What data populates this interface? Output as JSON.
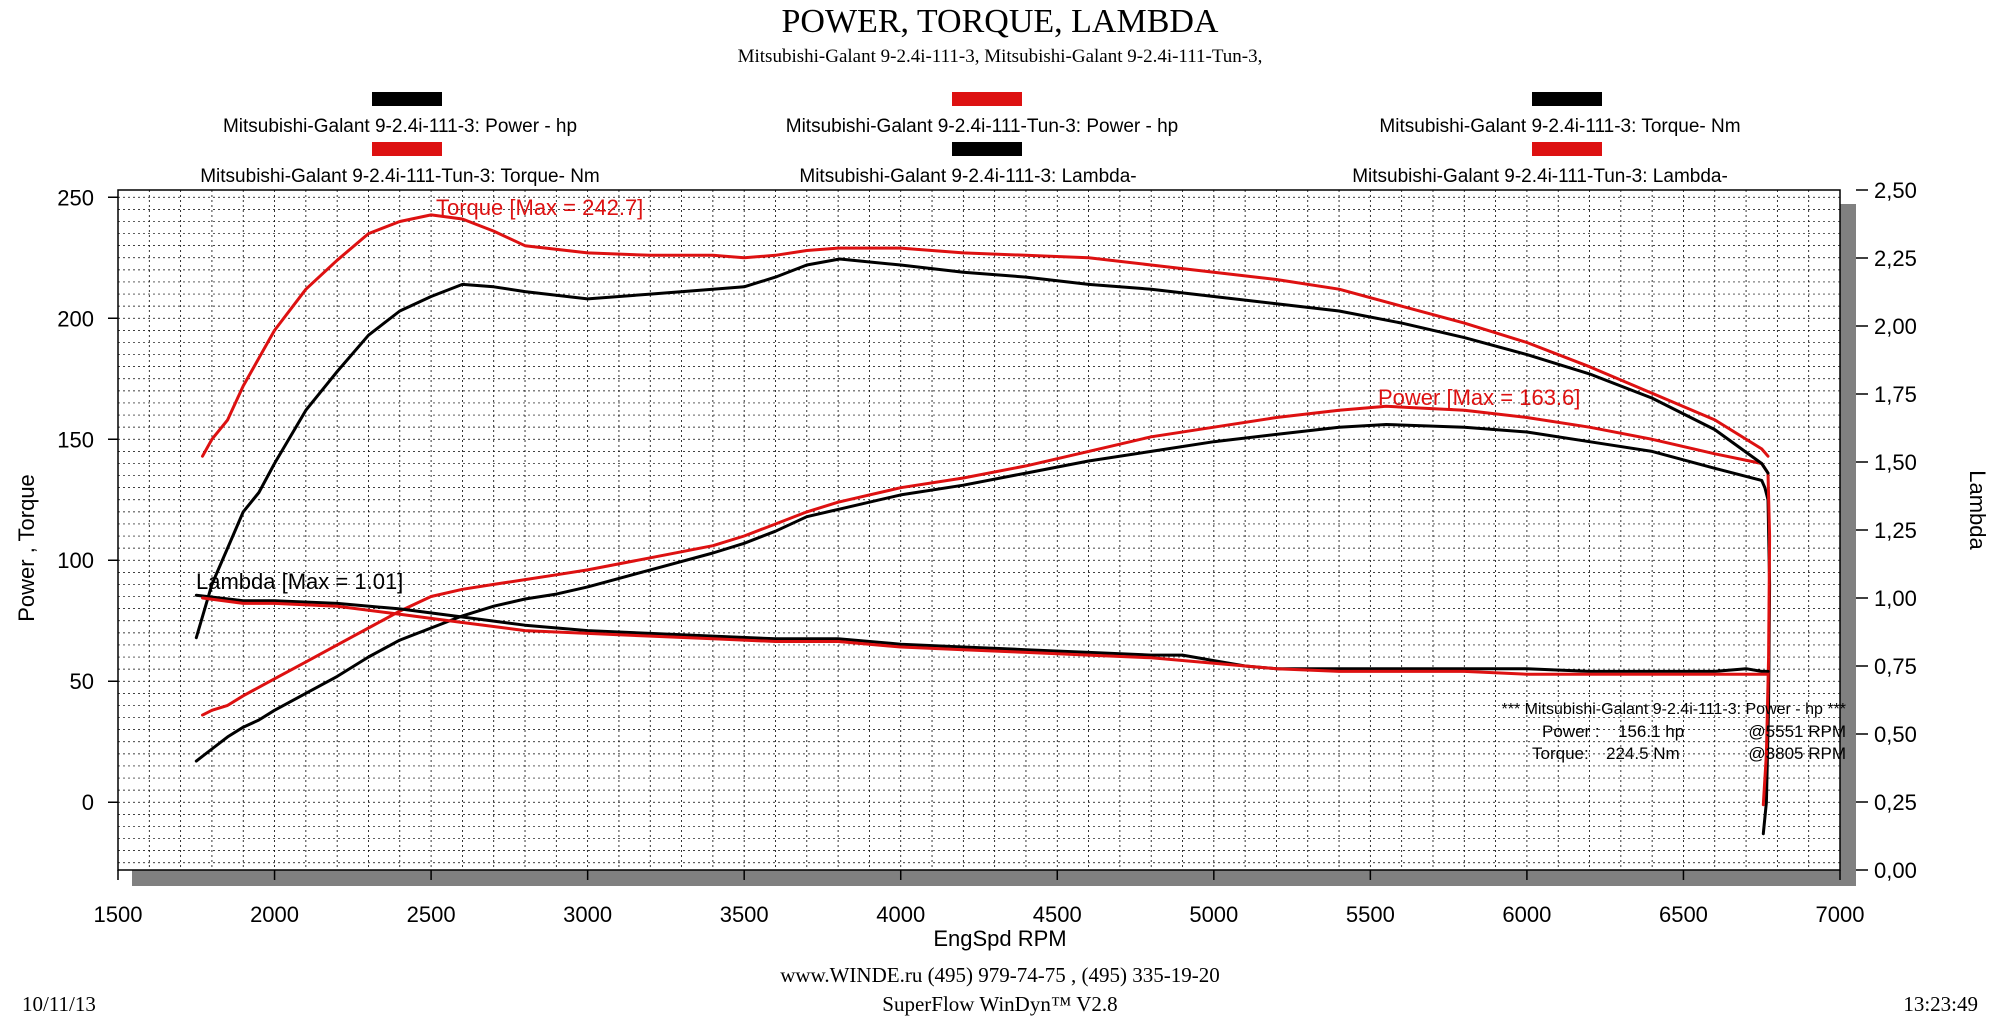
{
  "header": {
    "title": "POWER, TORQUE, LAMBDA",
    "subtitle": "Mitsubishi-Galant 9-2.4i-111-3, Mitsubishi-Galant 9-2.4i-111-Tun-3,"
  },
  "footer": {
    "contact": "www.WINDE.ru  (495) 979-74-75 , (495) 335-19-20",
    "software": "SuperFlow WinDyn™ V2.8",
    "date": "10/11/13",
    "time": "13:23:49"
  },
  "colors": {
    "stock": "#000000",
    "tuned": "#dd1111",
    "shadow": "#808080",
    "grid": "#000000"
  },
  "chart_data": {
    "type": "line",
    "title": "POWER, TORQUE, LAMBDA",
    "xlabel": "EngSpd  RPM",
    "ylabel": "Power , Torque",
    "y2label": "Lambda",
    "xlim": [
      1500,
      7000
    ],
    "ylim": [
      -28,
      253
    ],
    "y2lim": [
      0,
      2.5
    ],
    "x_ticks": [
      "1500",
      "2000",
      "2500",
      "3000",
      "3500",
      "4000",
      "4500",
      "5000",
      "5500",
      "6000",
      "6500",
      "7000"
    ],
    "y_ticks": [
      "0",
      "50",
      "100",
      "150",
      "200",
      "250"
    ],
    "y2_ticks": [
      "0,00",
      "0,25",
      "0,50",
      "0,75",
      "1,00",
      "1,25",
      "1,50",
      "1,75",
      "2,00",
      "2,25",
      "2,50"
    ],
    "legend": [
      {
        "label": "Mitsubishi-Galant 9-2.4i-111-3: Power -  hp",
        "color": "#000000"
      },
      {
        "label": "Mitsubishi-Galant 9-2.4i-111-Tun-3: Power -  hp",
        "color": "#dd1111"
      },
      {
        "label": "Mitsubishi-Galant 9-2.4i-111-3: Torque-  Nm",
        "color": "#000000"
      },
      {
        "label": "Mitsubishi-Galant 9-2.4i-111-Tun-3: Torque-  Nm",
        "color": "#dd1111"
      },
      {
        "label": "Mitsubishi-Galant 9-2.4i-111-3: Lambda-",
        "color": "#000000"
      },
      {
        "label": "Mitsubishi-Galant 9-2.4i-111-Tun-3: Lambda-",
        "color": "#dd1111"
      }
    ],
    "annotations": {
      "torque_max": "Torque [Max = 242.7]",
      "power_max": "Power  [Max = 163.6]",
      "lambda_max": "Lambda [Max = 1.01]"
    },
    "summary": {
      "header": "*** Mitsubishi-Galant 9-2.4i-111-3: Power -  hp   ***",
      "power_label": "Power :",
      "power_value": "156.1 hp",
      "power_rpm": "@5551 RPM",
      "torque_label": "Torque:",
      "torque_value": "224.5 Nm",
      "torque_rpm": "@3805 RPM"
    },
    "series": [
      {
        "name": "Mitsubishi-Galant 9-2.4i-111-3: Power -  hp",
        "axis": "left",
        "color": "#000000",
        "points": [
          [
            1750,
            17
          ],
          [
            1800,
            22
          ],
          [
            1850,
            27
          ],
          [
            1900,
            31
          ],
          [
            1950,
            34
          ],
          [
            2000,
            38
          ],
          [
            2100,
            45
          ],
          [
            2200,
            52
          ],
          [
            2300,
            60
          ],
          [
            2400,
            67
          ],
          [
            2500,
            72
          ],
          [
            2600,
            77
          ],
          [
            2700,
            81
          ],
          [
            2800,
            84
          ],
          [
            2900,
            86
          ],
          [
            3000,
            89
          ],
          [
            3200,
            96
          ],
          [
            3400,
            103
          ],
          [
            3500,
            107
          ],
          [
            3600,
            112
          ],
          [
            3700,
            118
          ],
          [
            3800,
            121
          ],
          [
            4000,
            127
          ],
          [
            4200,
            131
          ],
          [
            4400,
            136
          ],
          [
            4600,
            141
          ],
          [
            4800,
            145
          ],
          [
            5000,
            149
          ],
          [
            5200,
            152
          ],
          [
            5400,
            155
          ],
          [
            5551,
            156.1
          ],
          [
            5800,
            155
          ],
          [
            6000,
            153
          ],
          [
            6200,
            149
          ],
          [
            6400,
            145
          ],
          [
            6600,
            138
          ],
          [
            6750,
            133
          ],
          [
            6760,
            130
          ],
          [
            6770,
            125
          ],
          [
            6775,
            90
          ],
          [
            6772,
            40
          ],
          [
            6765,
            0
          ],
          [
            6755,
            -13
          ]
        ]
      },
      {
        "name": "Mitsubishi-Galant 9-2.4i-111-Tun-3: Power -  hp",
        "axis": "left",
        "color": "#dd1111",
        "points": [
          [
            1770,
            36
          ],
          [
            1800,
            38
          ],
          [
            1850,
            40
          ],
          [
            1900,
            44
          ],
          [
            2000,
            51
          ],
          [
            2100,
            58
          ],
          [
            2200,
            65
          ],
          [
            2300,
            72
          ],
          [
            2400,
            79
          ],
          [
            2500,
            85
          ],
          [
            2600,
            88
          ],
          [
            2700,
            90
          ],
          [
            2800,
            92
          ],
          [
            2900,
            94
          ],
          [
            3000,
            96
          ],
          [
            3200,
            101
          ],
          [
            3400,
            106
          ],
          [
            3500,
            110
          ],
          [
            3600,
            115
          ],
          [
            3700,
            120
          ],
          [
            3800,
            124
          ],
          [
            4000,
            130
          ],
          [
            4200,
            134
          ],
          [
            4400,
            139
          ],
          [
            4600,
            145
          ],
          [
            4800,
            151
          ],
          [
            5000,
            155
          ],
          [
            5200,
            159
          ],
          [
            5400,
            162
          ],
          [
            5551,
            163.6
          ],
          [
            5800,
            162
          ],
          [
            6000,
            159
          ],
          [
            6200,
            155
          ],
          [
            6400,
            150
          ],
          [
            6600,
            144
          ],
          [
            6750,
            140
          ],
          [
            6770,
            136
          ],
          [
            6775,
            110
          ],
          [
            6772,
            60
          ],
          [
            6765,
            20
          ],
          [
            6755,
            -1
          ]
        ]
      },
      {
        "name": "Mitsubishi-Galant 9-2.4i-111-3: Torque-  Nm",
        "axis": "left",
        "color": "#000000",
        "points": [
          [
            1750,
            68
          ],
          [
            1800,
            90
          ],
          [
            1850,
            105
          ],
          [
            1900,
            120
          ],
          [
            1950,
            128
          ],
          [
            2000,
            140
          ],
          [
            2100,
            162
          ],
          [
            2200,
            178
          ],
          [
            2300,
            193
          ],
          [
            2400,
            203
          ],
          [
            2500,
            209
          ],
          [
            2600,
            214
          ],
          [
            2700,
            213
          ],
          [
            2800,
            211
          ],
          [
            3000,
            208
          ],
          [
            3200,
            210
          ],
          [
            3400,
            212
          ],
          [
            3500,
            213
          ],
          [
            3600,
            217
          ],
          [
            3700,
            222
          ],
          [
            3805,
            224.5
          ],
          [
            4000,
            222
          ],
          [
            4200,
            219
          ],
          [
            4400,
            217
          ],
          [
            4600,
            214
          ],
          [
            4800,
            212
          ],
          [
            5000,
            209
          ],
          [
            5200,
            206
          ],
          [
            5400,
            203
          ],
          [
            5600,
            198
          ],
          [
            5800,
            192
          ],
          [
            6000,
            185
          ],
          [
            6200,
            177
          ],
          [
            6400,
            167
          ],
          [
            6600,
            154
          ],
          [
            6750,
            140
          ],
          [
            6770,
            136
          ]
        ]
      },
      {
        "name": "Mitsubishi-Galant 9-2.4i-111-Tun-3: Torque-  Nm",
        "axis": "left",
        "color": "#dd1111",
        "points": [
          [
            1770,
            143
          ],
          [
            1800,
            150
          ],
          [
            1850,
            158
          ],
          [
            1900,
            172
          ],
          [
            2000,
            195
          ],
          [
            2100,
            212
          ],
          [
            2200,
            224
          ],
          [
            2300,
            235
          ],
          [
            2400,
            240
          ],
          [
            2500,
            242.7
          ],
          [
            2600,
            241
          ],
          [
            2700,
            236
          ],
          [
            2800,
            230
          ],
          [
            3000,
            227
          ],
          [
            3200,
            226
          ],
          [
            3400,
            226
          ],
          [
            3500,
            225
          ],
          [
            3600,
            226
          ],
          [
            3700,
            228
          ],
          [
            3800,
            229
          ],
          [
            4000,
            229
          ],
          [
            4200,
            227
          ],
          [
            4400,
            226
          ],
          [
            4600,
            225
          ],
          [
            4800,
            222
          ],
          [
            5000,
            219
          ],
          [
            5200,
            216
          ],
          [
            5400,
            212
          ],
          [
            5600,
            205
          ],
          [
            5800,
            198
          ],
          [
            6000,
            190
          ],
          [
            6200,
            180
          ],
          [
            6400,
            169
          ],
          [
            6600,
            158
          ],
          [
            6750,
            146
          ],
          [
            6770,
            143
          ]
        ]
      },
      {
        "name": "Mitsubishi-Galant 9-2.4i-111-3: Lambda-",
        "axis": "right",
        "color": "#000000",
        "points": [
          [
            1750,
            1.01
          ],
          [
            1900,
            0.99
          ],
          [
            2000,
            0.99
          ],
          [
            2200,
            0.98
          ],
          [
            2400,
            0.96
          ],
          [
            2600,
            0.93
          ],
          [
            2800,
            0.9
          ],
          [
            3000,
            0.88
          ],
          [
            3200,
            0.87
          ],
          [
            3400,
            0.86
          ],
          [
            3600,
            0.85
          ],
          [
            3800,
            0.85
          ],
          [
            4000,
            0.83
          ],
          [
            4200,
            0.82
          ],
          [
            4400,
            0.81
          ],
          [
            4600,
            0.8
          ],
          [
            4800,
            0.79
          ],
          [
            4900,
            0.79
          ],
          [
            5000,
            0.77
          ],
          [
            5100,
            0.75
          ],
          [
            5200,
            0.74
          ],
          [
            5400,
            0.74
          ],
          [
            5600,
            0.74
          ],
          [
            5800,
            0.74
          ],
          [
            6000,
            0.74
          ],
          [
            6200,
            0.73
          ],
          [
            6400,
            0.73
          ],
          [
            6600,
            0.73
          ],
          [
            6700,
            0.74
          ],
          [
            6750,
            0.73
          ],
          [
            6770,
            0.73
          ]
        ]
      },
      {
        "name": "Mitsubishi-Galant 9-2.4i-111-Tun-3: Lambda-",
        "axis": "right",
        "color": "#dd1111",
        "points": [
          [
            1770,
            1.0
          ],
          [
            1900,
            0.98
          ],
          [
            2000,
            0.98
          ],
          [
            2200,
            0.97
          ],
          [
            2400,
            0.94
          ],
          [
            2600,
            0.91
          ],
          [
            2800,
            0.88
          ],
          [
            3000,
            0.87
          ],
          [
            3200,
            0.86
          ],
          [
            3400,
            0.85
          ],
          [
            3600,
            0.84
          ],
          [
            3800,
            0.84
          ],
          [
            4000,
            0.82
          ],
          [
            4200,
            0.81
          ],
          [
            4400,
            0.8
          ],
          [
            4600,
            0.79
          ],
          [
            4800,
            0.78
          ],
          [
            5000,
            0.76
          ],
          [
            5200,
            0.74
          ],
          [
            5400,
            0.73
          ],
          [
            5600,
            0.73
          ],
          [
            5800,
            0.73
          ],
          [
            6000,
            0.72
          ],
          [
            6200,
            0.72
          ],
          [
            6400,
            0.72
          ],
          [
            6600,
            0.72
          ],
          [
            6700,
            0.72
          ],
          [
            6770,
            0.72
          ]
        ]
      }
    ]
  }
}
